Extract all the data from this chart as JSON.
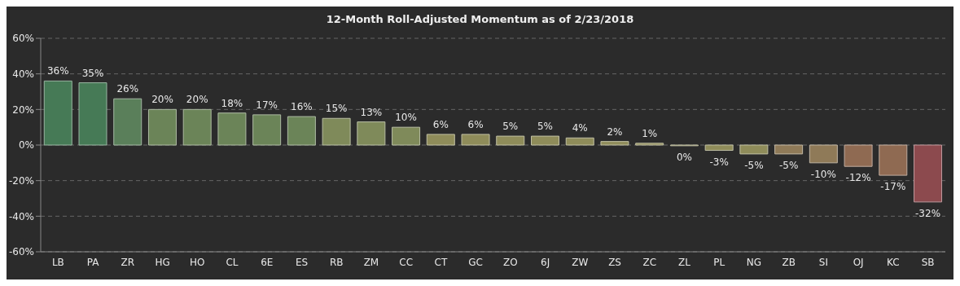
{
  "chart_data": {
    "type": "bar",
    "title": "12-Month Roll-Adjusted Momentum as of 2/23/2018",
    "categories": [
      "LB",
      "PA",
      "ZR",
      "HG",
      "HO",
      "CL",
      "6E",
      "ES",
      "RB",
      "ZM",
      "CC",
      "CT",
      "GC",
      "ZO",
      "6J",
      "ZW",
      "ZS",
      "ZC",
      "ZL",
      "PL",
      "NG",
      "ZB",
      "SI",
      "OJ",
      "KC",
      "SB"
    ],
    "values": [
      36,
      35,
      26,
      20,
      20,
      18,
      17,
      16,
      15,
      13,
      10,
      6,
      6,
      5,
      5,
      4,
      2,
      1,
      -0.4,
      -3,
      -5,
      -5,
      -10,
      -12,
      -17,
      -32
    ],
    "value_labels": [
      "36%",
      "35%",
      "26%",
      "20%",
      "20%",
      "18%",
      "17%",
      "16%",
      "15%",
      "13%",
      "10%",
      "6%",
      "6%",
      "5%",
      "5%",
      "4%",
      "2%",
      "1%",
      "0%",
      "-3%",
      "-5%",
      "-5%",
      "-10%",
      "-12%",
      "-17%",
      "-32%"
    ],
    "colors": [
      "#467a56",
      "#467a56",
      "#5a7f5a",
      "#6b8458",
      "#6b8458",
      "#6b8458",
      "#6b8458",
      "#6b8458",
      "#7f8a5a",
      "#7f8a5a",
      "#7f8a5a",
      "#8f8c5a",
      "#8f8c5a",
      "#8f8c5a",
      "#8f8c5a",
      "#8f8c5a",
      "#8f8c5a",
      "#8f8c5a",
      "#8f8c5a",
      "#8f8c5a",
      "#8f8c5a",
      "#8f7a58",
      "#8f7a58",
      "#8f6a52",
      "#8f6a52",
      "#8c4a4e"
    ],
    "ylim": [
      -60,
      60
    ],
    "yticks": [
      {
        "value": -60,
        "label": "-60%"
      },
      {
        "value": -40,
        "label": "-40%"
      },
      {
        "value": -20,
        "label": "-20%"
      },
      {
        "value": 0,
        "label": "0%"
      },
      {
        "value": 20,
        "label": "20%"
      },
      {
        "value": 40,
        "label": "40%"
      },
      {
        "value": 60,
        "label": "60%"
      }
    ],
    "grid": "y"
  }
}
